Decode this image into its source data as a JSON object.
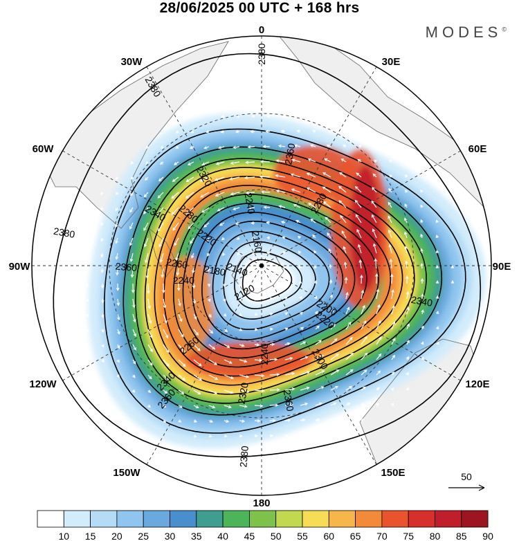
{
  "title": "28/06/2025  00 UTC  + 168 hrs",
  "brand": "MODES",
  "brand_mark": "©",
  "longitude_labels": {
    "n": "0",
    "nne": "30E",
    "ene": "60E",
    "e": "90E",
    "ese": "120E",
    "sse": "150E",
    "s": "180",
    "ssw": "150W",
    "wsw": "120W",
    "w": "90W",
    "wnw": "60W",
    "nnw": "30W"
  },
  "contour_labels": [
    "2120",
    "2140",
    "2160",
    "2180",
    "2200",
    "2220",
    "2240",
    "2260",
    "2280",
    "2300",
    "2320",
    "2340",
    "2360",
    "2380"
  ],
  "contour_label_instances": [
    {
      "text": "2380",
      "angle": -90
    },
    {
      "text": "2380",
      "angle": -170
    },
    {
      "text": "2380",
      "angle": -120
    },
    {
      "text": "2380",
      "angle": 95
    },
    {
      "text": "2360",
      "angle": -80
    },
    {
      "text": "2360",
      "angle": -175
    },
    {
      "text": "2360",
      "angle": 130
    },
    {
      "text": "2360",
      "angle": 80
    },
    {
      "text": "2340",
      "angle": -150
    },
    {
      "text": "2340",
      "angle": 10
    },
    {
      "text": "2340",
      "angle": 135
    },
    {
      "text": "2320",
      "angle": -120
    },
    {
      "text": "2320",
      "angle": 100
    },
    {
      "text": "2300",
      "angle": 60
    },
    {
      "text": "2280",
      "angle": -140
    },
    {
      "text": "2280",
      "angle": -60
    },
    {
      "text": "2260",
      "angle": -170
    },
    {
      "text": "2260",
      "angle": 140
    },
    {
      "text": "2240",
      "angle": -100
    },
    {
      "text": "2240",
      "angle": 90
    },
    {
      "text": "2240",
      "angle": -180
    },
    {
      "text": "2220",
      "angle": -145
    },
    {
      "text": "2220",
      "angle": 40
    },
    {
      "text": "2200",
      "angle": 30
    },
    {
      "text": "2180",
      "angle": -170
    },
    {
      "text": "2160",
      "angle": -100
    },
    {
      "text": "2140",
      "angle": -160
    },
    {
      "text": "2120",
      "angle": 150
    }
  ],
  "reference_vector": {
    "label": "50"
  },
  "colorbar": {
    "ticks": [
      "10",
      "15",
      "20",
      "25",
      "30",
      "35",
      "40",
      "45",
      "50",
      "55",
      "60",
      "65",
      "70",
      "75",
      "80",
      "85",
      "90"
    ],
    "colors": [
      "#ffffff",
      "#d3ecfb",
      "#b4dcf6",
      "#8fc5ee",
      "#6aa9de",
      "#4a8fcd",
      "#3f9e8f",
      "#4db45a",
      "#7fc24b",
      "#c2d84f",
      "#f6dd55",
      "#f7b64a",
      "#f38a3a",
      "#e9532e",
      "#d7302c",
      "#c01e2a",
      "#9c1521"
    ]
  },
  "colors": {
    "land": "#efefef",
    "coast": "#666666",
    "contour": "#000000",
    "vector": "#ffffff",
    "grid": "#333333"
  }
}
